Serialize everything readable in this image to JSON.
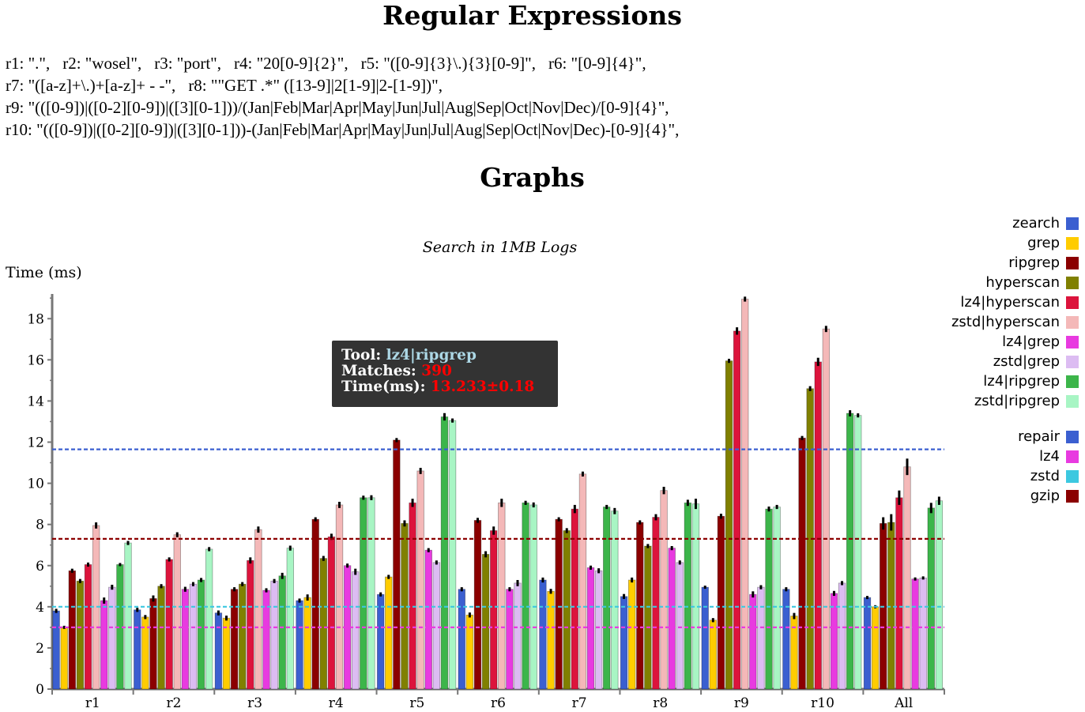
{
  "headings": {
    "regex_title": "Regular Expressions",
    "graphs_title": "Graphs"
  },
  "regex_lines": [
    [
      "r1: \".\",",
      "r2: \"wosel\",",
      "r3: \"port\",",
      "r4: \"20[0-9]{2}\",",
      "r5: \"([0-9]{3}\\.){3}[0-9]\",",
      "r6: \"[0-9]{4}\","
    ],
    [
      "r7: \"([a-z]+\\.)+[a-z]+ - -\",",
      "r8: \"\"GET .*\" ([13-9]|2[1-9]|2-[1-9])\","
    ],
    [
      "r9: \"(([0-9])|([0-2][0-9])|([3][0-1]))/(Jan|Feb|Mar|Apr|May|Jun|Jul|Aug|Sep|Oct|Nov|Dec)/[0-9]{4}\","
    ],
    [
      "r10: \"(([0-9])|([0-2][0-9])|([3][0-1]))-(Jan|Feb|Mar|Apr|May|Jun|Jul|Aug|Sep|Oct|Nov|Dec)-[0-9]{4}\","
    ]
  ],
  "tooltip": {
    "tool_label": "Tool:",
    "tool_value": "lz4|ripgrep",
    "matches_label": "Matches:",
    "matches_value": "390",
    "time_label": "Time(ms):",
    "time_value": "13.233±0.18"
  },
  "legend_sections": [
    [
      {
        "label": "zearch",
        "color": "#3b5fd0"
      },
      {
        "label": "grep",
        "color": "#ffcc00"
      },
      {
        "label": "ripgrep",
        "color": "#8b0000"
      },
      {
        "label": "hyperscan",
        "color": "#808000"
      },
      {
        "label": "lz4|hyperscan",
        "color": "#dc143c"
      },
      {
        "label": "zstd|hyperscan",
        "color": "#f4b8b8"
      },
      {
        "label": "lz4|grep",
        "color": "#e83ae0"
      },
      {
        "label": "zstd|grep",
        "color": "#dcbcf2"
      },
      {
        "label": "lz4|ripgrep",
        "color": "#3cb54a"
      },
      {
        "label": "zstd|ripgrep",
        "color": "#a8f5c4"
      }
    ],
    [
      {
        "label": "repair",
        "color": "#3b5fd0"
      },
      {
        "label": "lz4",
        "color": "#e83ae0"
      },
      {
        "label": "zstd",
        "color": "#3cc8e0"
      },
      {
        "label": "gzip",
        "color": "#8b0000"
      }
    ]
  ],
  "chart_data": {
    "type": "bar",
    "title": "Search in 1MB Logs",
    "ylabel": "Time (ms)",
    "xlabel": "",
    "ylim": [
      0,
      19.2
    ],
    "yticks": [
      0,
      2,
      4,
      6,
      8,
      10,
      12,
      14,
      16,
      18
    ],
    "categories": [
      "r1",
      "r2",
      "r3",
      "r4",
      "r5",
      "r6",
      "r7",
      "r8",
      "r9",
      "r10",
      "All"
    ],
    "series": [
      {
        "name": "zearch",
        "color": "#3b5fd0",
        "values": [
          3.8,
          3.85,
          3.7,
          4.3,
          4.6,
          4.85,
          5.3,
          4.5,
          4.95,
          4.85,
          4.45
        ]
      },
      {
        "name": "grep",
        "color": "#ffcc00",
        "values": [
          3.0,
          3.5,
          3.45,
          4.45,
          5.45,
          3.6,
          4.75,
          5.3,
          3.35,
          3.55,
          4.0
        ]
      },
      {
        "name": "ripgrep",
        "color": "#8b0000",
        "values": [
          5.75,
          4.4,
          4.85,
          8.25,
          12.1,
          8.2,
          8.25,
          8.1,
          8.4,
          12.2,
          8.05
        ]
      },
      {
        "name": "hyperscan",
        "color": "#808000",
        "values": [
          5.25,
          5.0,
          5.1,
          6.35,
          8.05,
          6.55,
          7.7,
          6.95,
          15.95,
          14.6,
          8.1
        ]
      },
      {
        "name": "lz4|hyperscan",
        "color": "#dc143c",
        "values": [
          6.05,
          6.3,
          6.25,
          7.4,
          9.05,
          7.7,
          8.75,
          8.35,
          17.4,
          15.9,
          9.3
        ]
      },
      {
        "name": "zstd|hyperscan",
        "color": "#f4b8b8",
        "values": [
          7.95,
          7.5,
          7.75,
          8.95,
          10.6,
          9.05,
          10.45,
          9.65,
          18.95,
          17.5,
          10.8
        ]
      },
      {
        "name": "lz4|grep",
        "color": "#e83ae0",
        "values": [
          4.3,
          4.85,
          4.8,
          6.0,
          6.75,
          4.85,
          5.9,
          6.85,
          4.6,
          4.65,
          5.35
        ]
      },
      {
        "name": "zstd|grep",
        "color": "#dcbcf2",
        "values": [
          4.95,
          5.1,
          5.25,
          5.7,
          6.15,
          5.15,
          5.75,
          6.15,
          4.95,
          5.15,
          5.4
        ]
      },
      {
        "name": "lz4|ripgrep",
        "color": "#3cb54a",
        "values": [
          6.05,
          5.3,
          5.5,
          9.3,
          13.23,
          9.05,
          8.85,
          9.05,
          8.75,
          13.4,
          8.8
        ]
      },
      {
        "name": "zstd|ripgrep",
        "color": "#a8f5c4",
        "values": [
          7.1,
          6.8,
          6.85,
          9.3,
          13.05,
          8.95,
          8.65,
          9.0,
          8.85,
          13.3,
          9.15
        ]
      }
    ],
    "errors": [
      [
        0.1,
        0.1,
        0.12,
        0.1,
        0.1,
        0.1,
        0.12,
        0.12,
        0.05,
        0.1,
        0.05
      ],
      [
        0.05,
        0.1,
        0.12,
        0.15,
        0.1,
        0.12,
        0.12,
        0.12,
        0.1,
        0.15,
        0.05
      ],
      [
        0.1,
        0.15,
        0.1,
        0.1,
        0.1,
        0.12,
        0.1,
        0.1,
        0.12,
        0.1,
        0.3
      ],
      [
        0.1,
        0.1,
        0.1,
        0.12,
        0.15,
        0.15,
        0.12,
        0.1,
        0.1,
        0.12,
        0.4
      ],
      [
        0.1,
        0.1,
        0.15,
        0.15,
        0.2,
        0.2,
        0.2,
        0.15,
        0.18,
        0.2,
        0.35
      ],
      [
        0.15,
        0.12,
        0.15,
        0.15,
        0.15,
        0.2,
        0.12,
        0.18,
        0.12,
        0.15,
        0.4
      ],
      [
        0.15,
        0.12,
        0.1,
        0.1,
        0.1,
        0.1,
        0.1,
        0.1,
        0.15,
        0.12,
        0.05
      ],
      [
        0.12,
        0.1,
        0.1,
        0.15,
        0.1,
        0.15,
        0.12,
        0.1,
        0.1,
        0.1,
        0.05
      ],
      [
        0.05,
        0.1,
        0.15,
        0.1,
        0.18,
        0.1,
        0.1,
        0.15,
        0.12,
        0.15,
        0.25
      ],
      [
        0.1,
        0.1,
        0.12,
        0.12,
        0.1,
        0.12,
        0.15,
        0.25,
        0.1,
        0.1,
        0.2
      ]
    ],
    "reference_lines": [
      {
        "label": "repair",
        "value": 11.65,
        "color": "#3b5fd0"
      },
      {
        "label": "gzip",
        "value": 7.3,
        "color": "#8b0000"
      },
      {
        "label": "zstd",
        "value": 4.0,
        "color": "#3cc8e0"
      },
      {
        "label": "lz4",
        "value": 3.0,
        "color": "#e83ae0"
      }
    ],
    "grid": false,
    "legend_position": "right"
  }
}
